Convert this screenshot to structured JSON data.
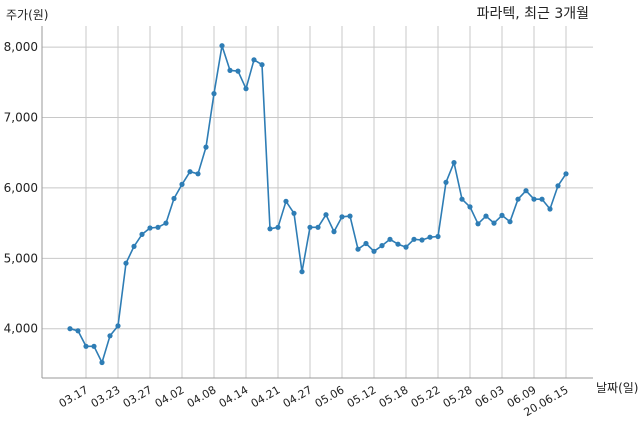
{
  "chart_data": {
    "type": "line",
    "title": "파라텍, 최근 3개월",
    "xlabel": "날짜(일)",
    "ylabel": "주가(원)",
    "ylim": [
      3300,
      8300
    ],
    "yticks": [
      4000,
      5000,
      6000,
      7000,
      8000
    ],
    "ytick_labels": [
      "4,000",
      "5,000",
      "6,000",
      "7,000",
      "8,000"
    ],
    "xtick_labels": [
      "03.17",
      "03.23",
      "03.27",
      "04.02",
      "04.08",
      "04.14",
      "04.21",
      "04.27",
      "05.06",
      "05.12",
      "05.18",
      "05.22",
      "05.28",
      "06.03",
      "06.09",
      "20.06.15"
    ],
    "xtick_indices": [
      2,
      6,
      10,
      14,
      18,
      22,
      26,
      30,
      34,
      38,
      42,
      46,
      50,
      54,
      58,
      62
    ],
    "grid": true,
    "color": "#2e7db5",
    "series": [
      {
        "values": [
          4000,
          3970,
          3750,
          3750,
          3520,
          3900,
          4040,
          4930,
          5170,
          5340,
          5430,
          5440,
          5500,
          5850,
          6050,
          6230,
          6200,
          6580,
          7340,
          8020,
          7670,
          7660,
          7410,
          7820,
          7750,
          5420,
          5440,
          5810,
          5640,
          4810,
          5440,
          5440,
          5620,
          5380,
          5590,
          5600,
          5130,
          5210,
          5100,
          5180,
          5270,
          5200,
          5160,
          5270,
          5260,
          5300,
          5310,
          6080,
          6360,
          5840,
          5730,
          5490,
          5600,
          5500,
          5610,
          5520,
          5840,
          5960,
          5840,
          5840,
          5700,
          6030,
          6200
        ]
      }
    ]
  }
}
